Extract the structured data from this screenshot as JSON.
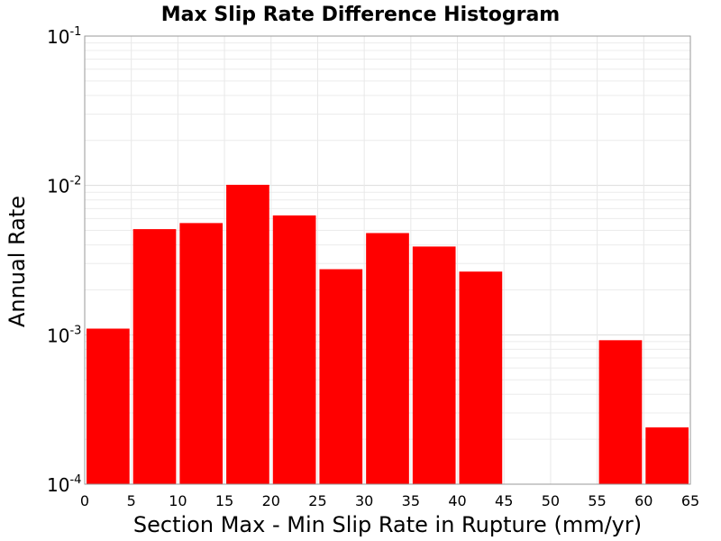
{
  "chart_data": {
    "type": "bar",
    "title": "Max Slip Rate Difference Histogram",
    "xlabel": "Section Max - Min Slip Rate in Rupture (mm/yr)",
    "ylabel": "Annual Rate",
    "x_range": [
      0,
      65
    ],
    "x_ticks": [
      0,
      5,
      10,
      15,
      20,
      25,
      30,
      35,
      40,
      45,
      50,
      55,
      60,
      65
    ],
    "y_scale": "log",
    "y_range": [
      0.0001,
      0.1
    ],
    "y_ticks": [
      {
        "value": 0.0001,
        "base": "10",
        "exp": "-4"
      },
      {
        "value": 0.001,
        "base": "10",
        "exp": "-3"
      },
      {
        "value": 0.01,
        "base": "10",
        "exp": "-2"
      },
      {
        "value": 0.1,
        "base": "10",
        "exp": "-1"
      }
    ],
    "grid": true,
    "bar_color": "#ff0000",
    "bins": [
      {
        "x0": 0,
        "x1": 5,
        "value": 0.0011
      },
      {
        "x0": 5,
        "x1": 10,
        "value": 0.0051
      },
      {
        "x0": 10,
        "x1": 15,
        "value": 0.0056
      },
      {
        "x0": 15,
        "x1": 20,
        "value": 0.0101
      },
      {
        "x0": 20,
        "x1": 25,
        "value": 0.0063
      },
      {
        "x0": 25,
        "x1": 30,
        "value": 0.00275
      },
      {
        "x0": 30,
        "x1": 35,
        "value": 0.0048
      },
      {
        "x0": 35,
        "x1": 40,
        "value": 0.0039
      },
      {
        "x0": 40,
        "x1": 45,
        "value": 0.00265
      },
      {
        "x0": 55,
        "x1": 60,
        "value": 0.00092
      },
      {
        "x0": 60,
        "x1": 65,
        "value": 0.00024
      }
    ]
  }
}
